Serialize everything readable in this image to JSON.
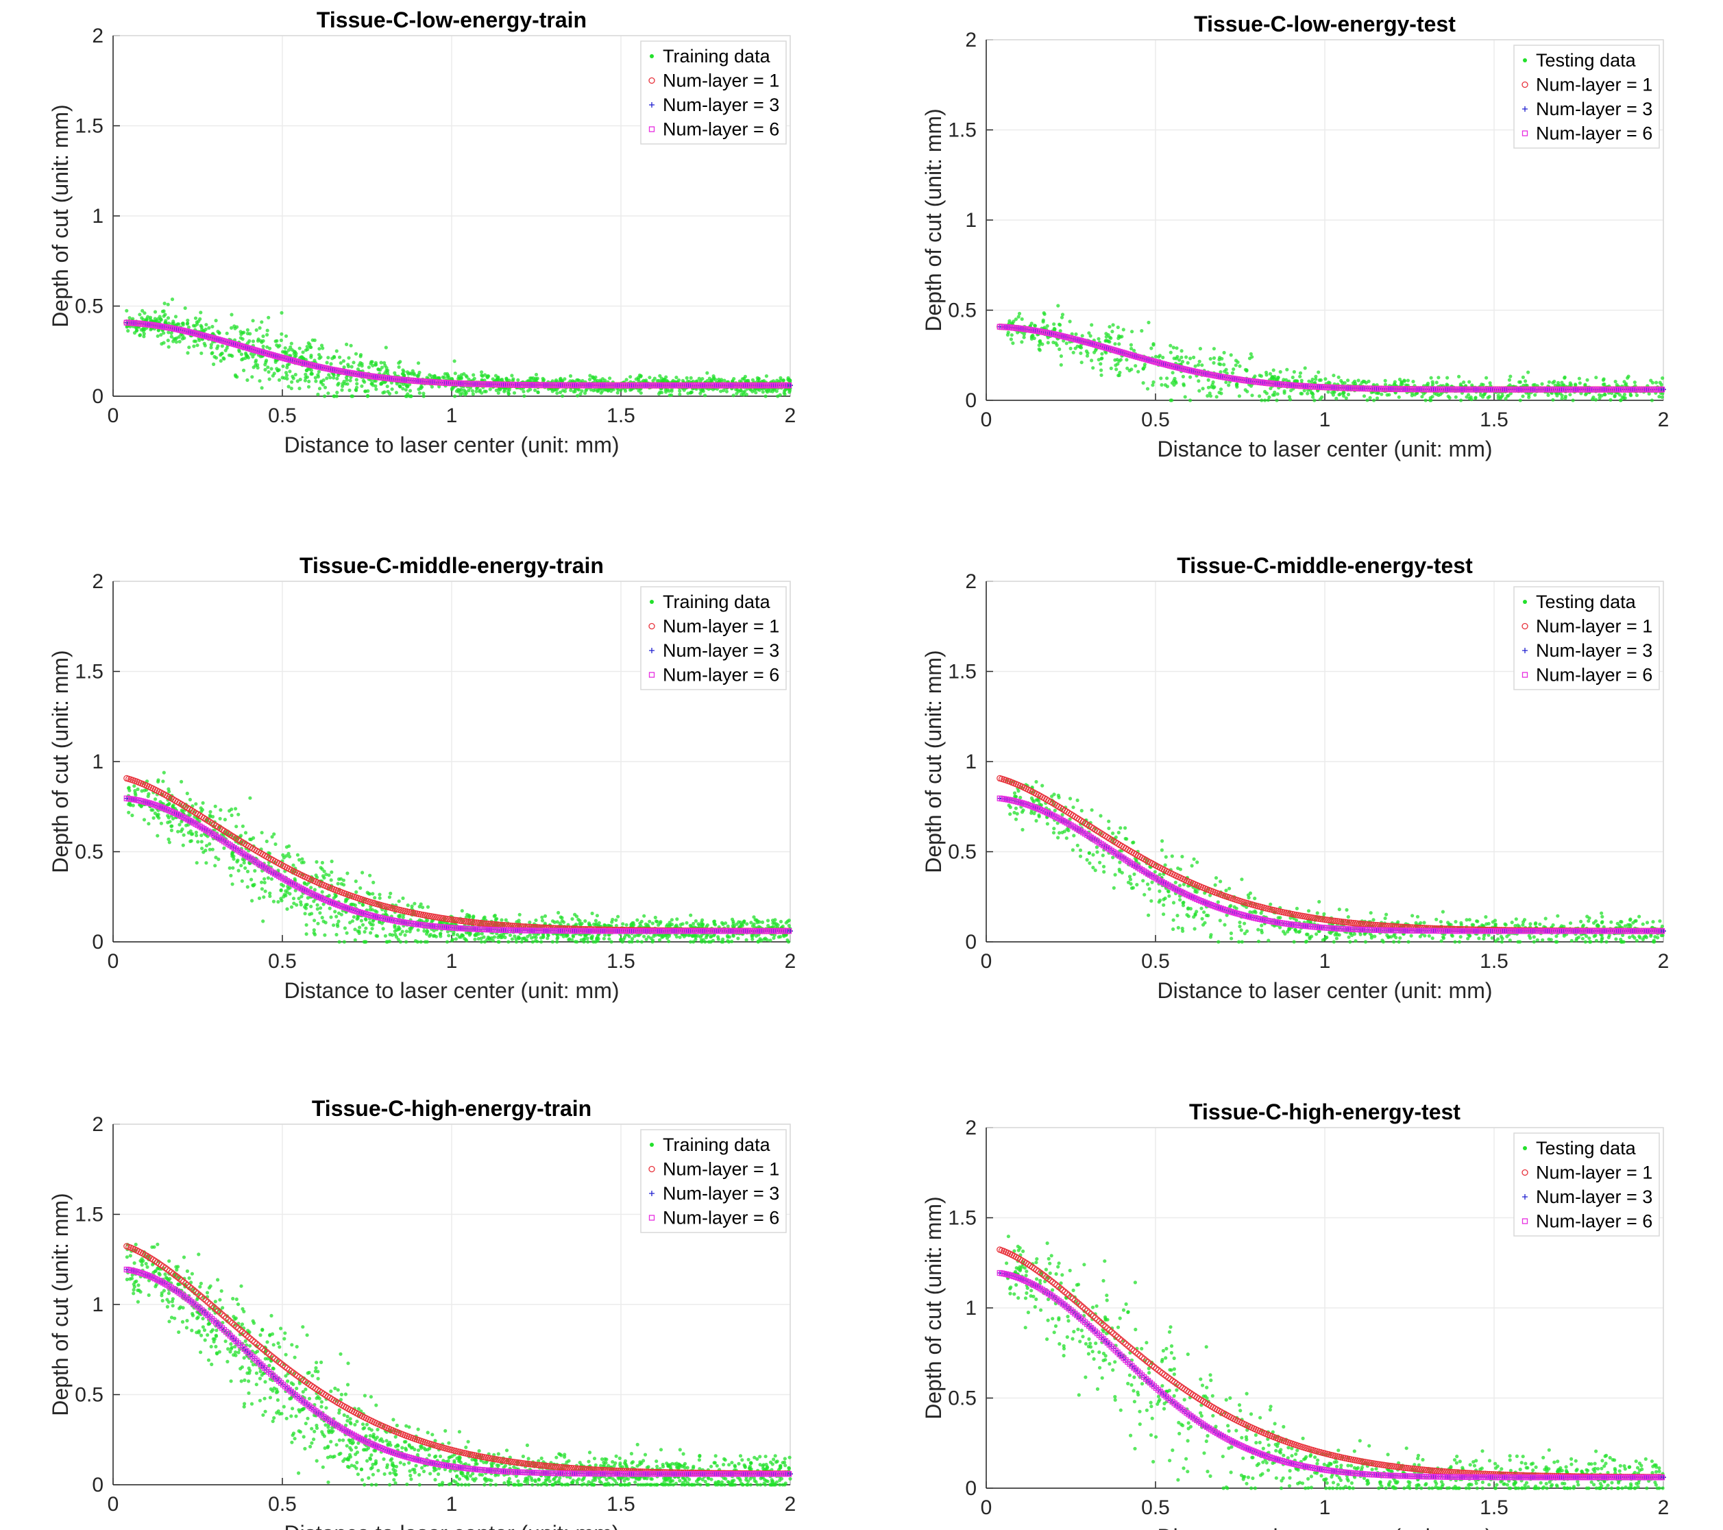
{
  "figure": {
    "panel_count": 6,
    "colors": {
      "data": "#22e02b",
      "layer1": "#e8323c",
      "layer3": "#1f1fd0",
      "layer6": "#e62de0",
      "curve1": "#e0161b",
      "curve3": "#9a2bd6",
      "curve6": "#e018e8"
    }
  },
  "chart_data": [
    {
      "type": "scatter",
      "title": "Tissue-C-low-energy-train",
      "xlabel": "Distance to laser center (unit: mm)",
      "ylabel": "Depth of cut (unit: mm)",
      "xlim": [
        0,
        2
      ],
      "ylim": [
        0,
        2
      ],
      "xticks": [
        "0",
        "0.5",
        "1",
        "1.5",
        "2"
      ],
      "yticks": [
        "0",
        "0.5",
        "1",
        "1.5",
        "2"
      ],
      "legend_position": "top-right",
      "grid": true,
      "data_model": {
        "peak": 0.41,
        "base": 0.06,
        "width": 0.55,
        "noise": 0.035,
        "count": 1500,
        "x_min": 0.04,
        "x_max": 2.0,
        "seed": 11
      },
      "series": [
        {
          "name": "Training data",
          "marker": "dot",
          "color": "#22e02b"
        },
        {
          "name": "Num-layer = 1",
          "marker": "circle",
          "color": "#e8323c",
          "curve": {
            "kind": "gauss",
            "peak": 0.41,
            "base": 0.06,
            "width": 0.55
          }
        },
        {
          "name": "Num-layer = 3",
          "marker": "plus",
          "color": "#1f1fd0",
          "curve": {
            "kind": "gauss",
            "peak": 0.41,
            "base": 0.06,
            "width": 0.55
          }
        },
        {
          "name": "Num-layer = 6",
          "marker": "square",
          "color": "#e62de0",
          "curve": {
            "kind": "gauss",
            "peak": 0.41,
            "base": 0.06,
            "width": 0.55
          }
        }
      ]
    },
    {
      "type": "scatter",
      "title": "Tissue-C-low-energy-test",
      "xlabel": "Distance to laser center (unit: mm)",
      "ylabel": "Depth of cut (unit: mm)",
      "xlim": [
        0,
        2
      ],
      "ylim": [
        0,
        2
      ],
      "xticks": [
        "0",
        "0.5",
        "1",
        "1.5",
        "2"
      ],
      "yticks": [
        "0",
        "0.5",
        "1",
        "1.5",
        "2"
      ],
      "legend_position": "top-right",
      "grid": true,
      "data_model": {
        "peak": 0.41,
        "base": 0.06,
        "width": 0.55,
        "noise": 0.04,
        "count": 900,
        "x_min": 0.06,
        "x_max": 2.0,
        "seed": 23
      },
      "series": [
        {
          "name": "Testing data",
          "marker": "dot",
          "color": "#22e02b"
        },
        {
          "name": "Num-layer = 1",
          "marker": "circle",
          "color": "#e8323c",
          "curve": {
            "kind": "gauss",
            "peak": 0.41,
            "base": 0.06,
            "width": 0.55
          }
        },
        {
          "name": "Num-layer = 3",
          "marker": "plus",
          "color": "#1f1fd0",
          "curve": {
            "kind": "gauss",
            "peak": 0.41,
            "base": 0.06,
            "width": 0.55
          }
        },
        {
          "name": "Num-layer = 6",
          "marker": "square",
          "color": "#e62de0",
          "curve": {
            "kind": "gauss",
            "peak": 0.41,
            "base": 0.06,
            "width": 0.55
          }
        }
      ]
    },
    {
      "type": "scatter",
      "title": "Tissue-C-middle-energy-train",
      "xlabel": "Distance to laser center (unit: mm)",
      "ylabel": "Depth of cut (unit: mm)",
      "xlim": [
        0,
        2
      ],
      "ylim": [
        0,
        2
      ],
      "xticks": [
        "0",
        "0.5",
        "1",
        "1.5",
        "2"
      ],
      "yticks": [
        "0",
        "0.5",
        "1",
        "1.5",
        "2"
      ],
      "legend_position": "top-right",
      "grid": true,
      "data_model": {
        "peak": 0.8,
        "base": 0.06,
        "width": 0.52,
        "noise": 0.05,
        "count": 1500,
        "x_min": 0.04,
        "x_max": 2.0,
        "seed": 37
      },
      "series": [
        {
          "name": "Training data",
          "marker": "dot",
          "color": "#22e02b"
        },
        {
          "name": "Num-layer = 1",
          "marker": "circle",
          "color": "#e8323c",
          "curve": {
            "kind": "exp",
            "peak": 0.92,
            "base": 0.06,
            "width": 0.55
          }
        },
        {
          "name": "Num-layer = 3",
          "marker": "plus",
          "color": "#1f1fd0",
          "curve": {
            "kind": "gauss",
            "peak": 0.8,
            "base": 0.06,
            "width": 0.52
          }
        },
        {
          "name": "Num-layer = 6",
          "marker": "square",
          "color": "#e62de0",
          "curve": {
            "kind": "gauss",
            "peak": 0.8,
            "base": 0.06,
            "width": 0.52
          }
        }
      ]
    },
    {
      "type": "scatter",
      "title": "Tissue-C-middle-energy-test",
      "xlabel": "Distance to laser center (unit: mm)",
      "ylabel": "Depth of cut (unit: mm)",
      "xlim": [
        0,
        2
      ],
      "ylim": [
        0,
        2
      ],
      "xticks": [
        "0",
        "0.5",
        "1",
        "1.5",
        "2"
      ],
      "yticks": [
        "0",
        "0.5",
        "1",
        "1.5",
        "2"
      ],
      "legend_position": "top-right",
      "grid": true,
      "data_model": {
        "peak": 0.8,
        "base": 0.06,
        "width": 0.52,
        "noise": 0.05,
        "count": 900,
        "x_min": 0.06,
        "x_max": 2.0,
        "seed": 41
      },
      "series": [
        {
          "name": "Testing data",
          "marker": "dot",
          "color": "#22e02b"
        },
        {
          "name": "Num-layer = 1",
          "marker": "circle",
          "color": "#e8323c",
          "curve": {
            "kind": "exp",
            "peak": 0.92,
            "base": 0.06,
            "width": 0.55
          }
        },
        {
          "name": "Num-layer = 3",
          "marker": "plus",
          "color": "#1f1fd0",
          "curve": {
            "kind": "gauss",
            "peak": 0.8,
            "base": 0.06,
            "width": 0.52
          }
        },
        {
          "name": "Num-layer = 6",
          "marker": "square",
          "color": "#e62de0",
          "curve": {
            "kind": "gauss",
            "peak": 0.8,
            "base": 0.06,
            "width": 0.52
          }
        }
      ]
    },
    {
      "type": "scatter",
      "title": "Tissue-C-high-energy-train",
      "xlabel": "Distance to laser center (unit: mm)",
      "ylabel": "Depth of cut (unit: mm)",
      "xlim": [
        0,
        2
      ],
      "ylim": [
        0,
        2
      ],
      "xticks": [
        "0",
        "0.5",
        "1",
        "1.5",
        "2"
      ],
      "yticks": [
        "0",
        "0.5",
        "1",
        "1.5",
        "2"
      ],
      "legend_position": "top-right",
      "grid": true,
      "data_model": {
        "peak": 1.2,
        "base": 0.06,
        "width": 0.55,
        "noise": 0.07,
        "count": 1500,
        "x_min": 0.04,
        "x_max": 2.0,
        "seed": 53
      },
      "series": [
        {
          "name": "Training data",
          "marker": "dot",
          "color": "#22e02b"
        },
        {
          "name": "Num-layer = 1",
          "marker": "circle",
          "color": "#e8323c",
          "curve": {
            "kind": "exp",
            "peak": 1.34,
            "base": 0.06,
            "width": 0.6
          }
        },
        {
          "name": "Num-layer = 3",
          "marker": "plus",
          "color": "#1f1fd0",
          "curve": {
            "kind": "gauss",
            "peak": 1.2,
            "base": 0.06,
            "width": 0.55
          }
        },
        {
          "name": "Num-layer = 6",
          "marker": "square",
          "color": "#e62de0",
          "curve": {
            "kind": "gauss",
            "peak": 1.2,
            "base": 0.06,
            "width": 0.55
          }
        }
      ]
    },
    {
      "type": "scatter",
      "title": "Tissue-C-high-energy-test",
      "xlabel": "Distance to laser center (unit: mm)",
      "ylabel": "Depth of cut (unit: mm)",
      "xlim": [
        0,
        2
      ],
      "ylim": [
        0,
        2
      ],
      "xticks": [
        "0",
        "0.5",
        "1",
        "1.5",
        "2"
      ],
      "yticks": [
        "0",
        "0.5",
        "1",
        "1.5",
        "2"
      ],
      "legend_position": "top-right",
      "grid": true,
      "data_model": {
        "peak": 1.2,
        "base": 0.06,
        "width": 0.55,
        "noise": 0.08,
        "count": 900,
        "x_min": 0.06,
        "x_max": 2.0,
        "seed": 67
      },
      "series": [
        {
          "name": "Testing data",
          "marker": "dot",
          "color": "#22e02b"
        },
        {
          "name": "Num-layer = 1",
          "marker": "circle",
          "color": "#e8323c",
          "curve": {
            "kind": "exp",
            "peak": 1.34,
            "base": 0.06,
            "width": 0.6
          }
        },
        {
          "name": "Num-layer = 3",
          "marker": "plus",
          "color": "#1f1fd0",
          "curve": {
            "kind": "gauss",
            "peak": 1.2,
            "base": 0.06,
            "width": 0.55
          }
        },
        {
          "name": "Num-layer = 6",
          "marker": "square",
          "color": "#e62de0",
          "curve": {
            "kind": "gauss",
            "peak": 1.2,
            "base": 0.06,
            "width": 0.55
          }
        }
      ]
    }
  ]
}
